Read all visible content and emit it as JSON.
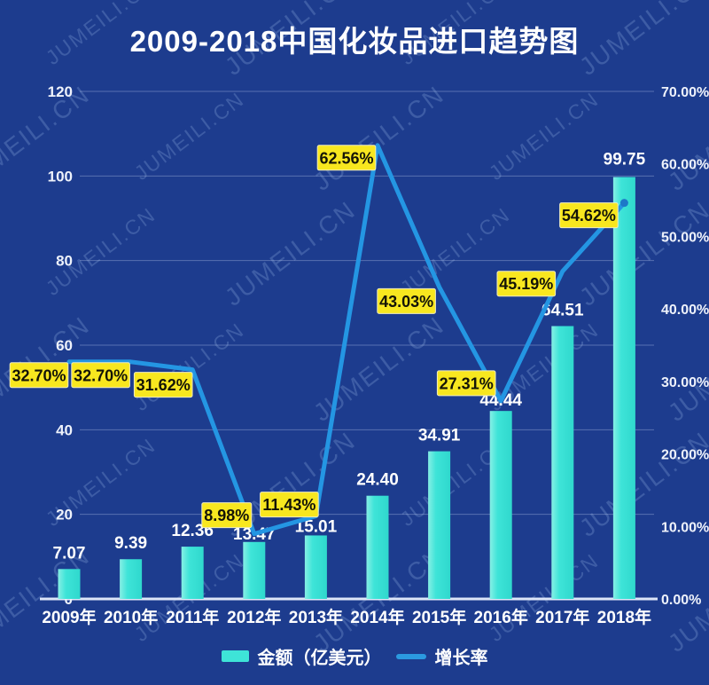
{
  "page": {
    "watermark": "JUMEILI.CN"
  },
  "chart_data": {
    "type": "combo_bar_line",
    "title": "2009-2018中国化妆品进口趋势图",
    "categories": [
      "2009年",
      "2010年",
      "2011年",
      "2012年",
      "2013年",
      "2014年",
      "2015年",
      "2016年",
      "2017年",
      "2018年"
    ],
    "series": [
      {
        "name": "金额（亿美元）",
        "type": "bar",
        "axis": "left",
        "color": "#3ee4d8",
        "values": [
          7.07,
          9.39,
          12.36,
          13.47,
          15.01,
          24.4,
          34.91,
          44.44,
          64.51,
          99.75
        ],
        "labels": [
          "7.07",
          "9.39",
          "12.36",
          "13.47",
          "15.01",
          "24.40",
          "34.91",
          "44.44",
          "64.51",
          "99.75"
        ]
      },
      {
        "name": "增长率",
        "type": "line",
        "axis": "right",
        "color": "#2496e3",
        "values": [
          32.7,
          32.7,
          31.62,
          8.98,
          11.43,
          62.56,
          43.03,
          27.31,
          45.19,
          54.62
        ],
        "labels": [
          "32.70%",
          "32.70%",
          "31.62%",
          "8.98%",
          "11.43%",
          "62.56%",
          "43.03%",
          "27.31%",
          "45.19%",
          "54.62%"
        ]
      }
    ],
    "left_axis": {
      "min": 0,
      "max": 120,
      "step": 20,
      "ticks": [
        "0",
        "20",
        "40",
        "60",
        "80",
        "100",
        "120"
      ]
    },
    "right_axis": {
      "min": 0,
      "max": 70,
      "step": 10,
      "ticks": [
        "0.00%",
        "10.00%",
        "20.00%",
        "30.00%",
        "40.00%",
        "50.00%",
        "60.00%",
        "70.00%"
      ]
    },
    "background": "#1d3c8e",
    "label_box_color": "#f8e71f",
    "grid": true,
    "legend_position": "bottom"
  }
}
